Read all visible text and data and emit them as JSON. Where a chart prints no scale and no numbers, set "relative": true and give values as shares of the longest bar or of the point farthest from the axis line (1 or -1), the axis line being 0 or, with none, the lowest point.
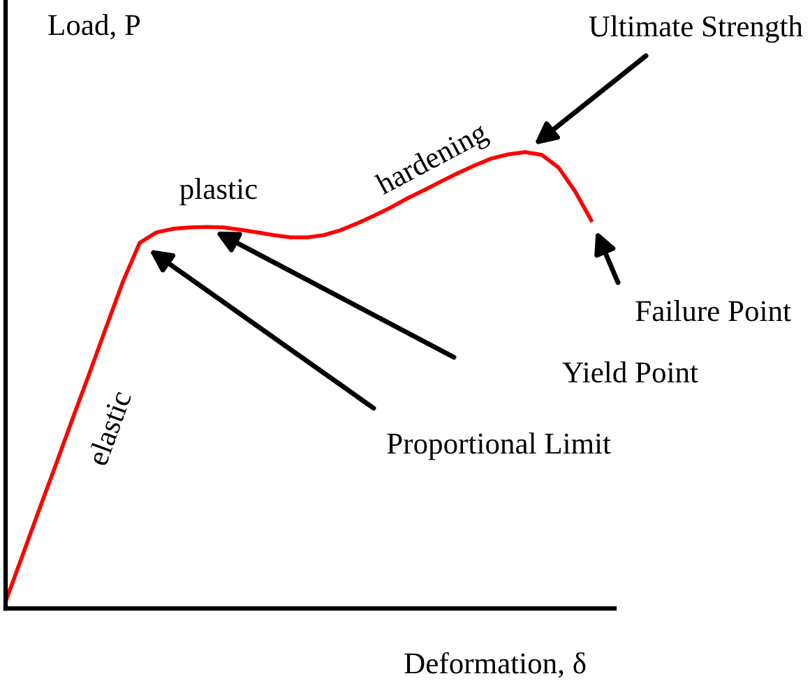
{
  "chart_data": {
    "type": "line",
    "relative": true,
    "xlabel": "Deformation, δ",
    "ylabel": "Load, P",
    "categories": [
      null,
      null,
      null,
      null,
      null,
      null,
      null,
      null,
      null,
      null,
      null,
      null,
      null,
      null,
      null,
      null,
      null,
      null,
      null,
      null,
      null,
      null,
      null,
      null,
      null,
      null,
      null,
      null,
      null,
      null,
      null,
      null,
      null,
      null,
      null,
      null
    ],
    "series": [
      {
        "color": "#ff0000",
        "values": [
          0.015,
          0.115,
          0.216,
          0.315,
          0.416,
          0.515,
          0.616,
          0.716,
          0.801,
          0.824,
          0.832,
          0.835,
          0.836,
          0.835,
          0.83,
          0.824,
          0.818,
          0.813,
          0.813,
          0.818,
          0.829,
          0.844,
          0.861,
          0.879,
          0.899,
          0.917,
          0.936,
          0.954,
          0.971,
          0.986,
          0.995,
          1.0,
          0.994,
          0.966,
          0.913,
          0.847
        ]
      }
    ],
    "annotations": [
      "Ultimate Strength",
      "Failure Point",
      "Yield Point",
      "Proportional Limit",
      "elastic",
      "plastic",
      "hardening"
    ],
    "grid": false,
    "legend": false,
    "marker": "none",
    "line_style": "solid"
  }
}
